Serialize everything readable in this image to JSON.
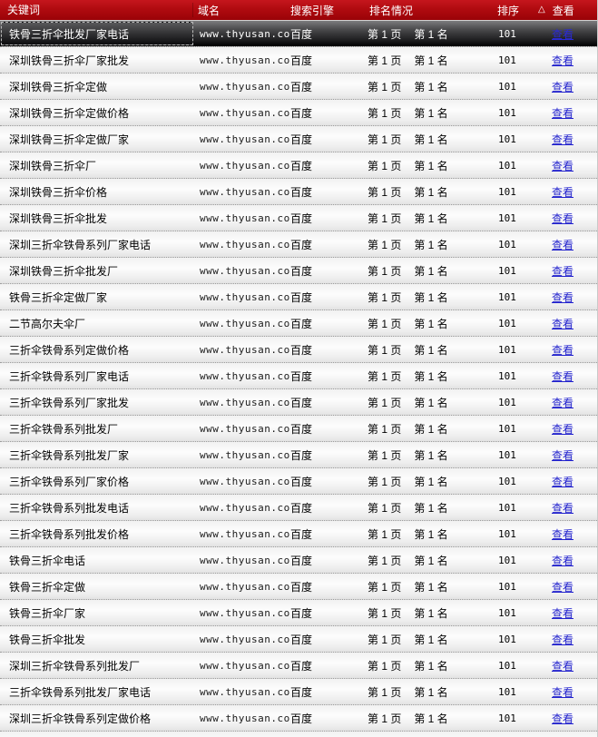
{
  "header": {
    "columns": [
      "关键词",
      "域名",
      "搜索引擎",
      "排名情况",
      "排序",
      "查看"
    ],
    "sort_icon": "△"
  },
  "colors": {
    "header_red": "#b00b10",
    "link_blue": "#2323cd",
    "selected_row_dark": "#1e1e20",
    "row_separator": "#9c9c9c"
  },
  "table": {
    "rows": [
      {
        "keyword": "铁骨三折伞批发厂家电话",
        "domain": "www.thyusan.com",
        "engine": "百度",
        "rank_page": "第 1 页",
        "rank_pos": "第 1 名",
        "sort": "101",
        "view": "查看",
        "selected": true
      },
      {
        "keyword": "深圳铁骨三折伞厂家批发",
        "domain": "www.thyusan.com",
        "engine": "百度",
        "rank_page": "第 1 页",
        "rank_pos": "第 1 名",
        "sort": "101",
        "view": "查看",
        "selected": false
      },
      {
        "keyword": "深圳铁骨三折伞定做",
        "domain": "www.thyusan.com",
        "engine": "百度",
        "rank_page": "第 1 页",
        "rank_pos": "第 1 名",
        "sort": "101",
        "view": "查看",
        "selected": false
      },
      {
        "keyword": "深圳铁骨三折伞定做价格",
        "domain": "www.thyusan.com",
        "engine": "百度",
        "rank_page": "第 1 页",
        "rank_pos": "第 1 名",
        "sort": "101",
        "view": "查看",
        "selected": false
      },
      {
        "keyword": "深圳铁骨三折伞定做厂家",
        "domain": "www.thyusan.com",
        "engine": "百度",
        "rank_page": "第 1 页",
        "rank_pos": "第 1 名",
        "sort": "101",
        "view": "查看",
        "selected": false
      },
      {
        "keyword": "深圳铁骨三折伞厂",
        "domain": "www.thyusan.com",
        "engine": "百度",
        "rank_page": "第 1 页",
        "rank_pos": "第 1 名",
        "sort": "101",
        "view": "查看",
        "selected": false
      },
      {
        "keyword": "深圳铁骨三折伞价格",
        "domain": "www.thyusan.com",
        "engine": "百度",
        "rank_page": "第 1 页",
        "rank_pos": "第 1 名",
        "sort": "101",
        "view": "查看",
        "selected": false
      },
      {
        "keyword": "深圳铁骨三折伞批发",
        "domain": "www.thyusan.com",
        "engine": "百度",
        "rank_page": "第 1 页",
        "rank_pos": "第 1 名",
        "sort": "101",
        "view": "查看",
        "selected": false
      },
      {
        "keyword": "深圳三折伞铁骨系列厂家电话",
        "domain": "www.thyusan.com",
        "engine": "百度",
        "rank_page": "第 1 页",
        "rank_pos": "第 1 名",
        "sort": "101",
        "view": "查看",
        "selected": false
      },
      {
        "keyword": "深圳铁骨三折伞批发厂",
        "domain": "www.thyusan.com",
        "engine": "百度",
        "rank_page": "第 1 页",
        "rank_pos": "第 1 名",
        "sort": "101",
        "view": "查看",
        "selected": false
      },
      {
        "keyword": "铁骨三折伞定做厂家",
        "domain": "www.thyusan.com",
        "engine": "百度",
        "rank_page": "第 1 页",
        "rank_pos": "第 1 名",
        "sort": "101",
        "view": "查看",
        "selected": false
      },
      {
        "keyword": "二节高尔夫伞厂",
        "domain": "www.thyusan.com",
        "engine": "百度",
        "rank_page": "第 1 页",
        "rank_pos": "第 1 名",
        "sort": "101",
        "view": "查看",
        "selected": false
      },
      {
        "keyword": "三折伞铁骨系列定做价格",
        "domain": "www.thyusan.com",
        "engine": "百度",
        "rank_page": "第 1 页",
        "rank_pos": "第 1 名",
        "sort": "101",
        "view": "查看",
        "selected": false
      },
      {
        "keyword": "三折伞铁骨系列厂家电话",
        "domain": "www.thyusan.com",
        "engine": "百度",
        "rank_page": "第 1 页",
        "rank_pos": "第 1 名",
        "sort": "101",
        "view": "查看",
        "selected": false
      },
      {
        "keyword": "三折伞铁骨系列厂家批发",
        "domain": "www.thyusan.com",
        "engine": "百度",
        "rank_page": "第 1 页",
        "rank_pos": "第 1 名",
        "sort": "101",
        "view": "查看",
        "selected": false
      },
      {
        "keyword": "三折伞铁骨系列批发厂",
        "domain": "www.thyusan.com",
        "engine": "百度",
        "rank_page": "第 1 页",
        "rank_pos": "第 1 名",
        "sort": "101",
        "view": "查看",
        "selected": false
      },
      {
        "keyword": "三折伞铁骨系列批发厂家",
        "domain": "www.thyusan.com",
        "engine": "百度",
        "rank_page": "第 1 页",
        "rank_pos": "第 1 名",
        "sort": "101",
        "view": "查看",
        "selected": false
      },
      {
        "keyword": "三折伞铁骨系列厂家价格",
        "domain": "www.thyusan.com",
        "engine": "百度",
        "rank_page": "第 1 页",
        "rank_pos": "第 1 名",
        "sort": "101",
        "view": "查看",
        "selected": false
      },
      {
        "keyword": "三折伞铁骨系列批发电话",
        "domain": "www.thyusan.com",
        "engine": "百度",
        "rank_page": "第 1 页",
        "rank_pos": "第 1 名",
        "sort": "101",
        "view": "查看",
        "selected": false
      },
      {
        "keyword": "三折伞铁骨系列批发价格",
        "domain": "www.thyusan.com",
        "engine": "百度",
        "rank_page": "第 1 页",
        "rank_pos": "第 1 名",
        "sort": "101",
        "view": "查看",
        "selected": false
      },
      {
        "keyword": "铁骨三折伞电话",
        "domain": "www.thyusan.com",
        "engine": "百度",
        "rank_page": "第 1 页",
        "rank_pos": "第 1 名",
        "sort": "101",
        "view": "查看",
        "selected": false
      },
      {
        "keyword": "铁骨三折伞定做",
        "domain": "www.thyusan.com",
        "engine": "百度",
        "rank_page": "第 1 页",
        "rank_pos": "第 1 名",
        "sort": "101",
        "view": "查看",
        "selected": false
      },
      {
        "keyword": "铁骨三折伞厂家",
        "domain": "www.thyusan.com",
        "engine": "百度",
        "rank_page": "第 1 页",
        "rank_pos": "第 1 名",
        "sort": "101",
        "view": "查看",
        "selected": false
      },
      {
        "keyword": "铁骨三折伞批发",
        "domain": "www.thyusan.com",
        "engine": "百度",
        "rank_page": "第 1 页",
        "rank_pos": "第 1 名",
        "sort": "101",
        "view": "查看",
        "selected": false
      },
      {
        "keyword": "深圳三折伞铁骨系列批发厂",
        "domain": "www.thyusan.com",
        "engine": "百度",
        "rank_page": "第 1 页",
        "rank_pos": "第 1 名",
        "sort": "101",
        "view": "查看",
        "selected": false
      },
      {
        "keyword": "三折伞铁骨系列批发厂家电话",
        "domain": "www.thyusan.com",
        "engine": "百度",
        "rank_page": "第 1 页",
        "rank_pos": "第 1 名",
        "sort": "101",
        "view": "查看",
        "selected": false
      },
      {
        "keyword": "深圳三折伞铁骨系列定做价格",
        "domain": "www.thyusan.com",
        "engine": "百度",
        "rank_page": "第 1 页",
        "rank_pos": "第 1 名",
        "sort": "101",
        "view": "查看",
        "selected": false
      },
      {
        "keyword": "",
        "domain": "",
        "engine": "",
        "rank_page": "",
        "rank_pos": "",
        "sort": "",
        "view": "",
        "selected": false,
        "filler": true
      }
    ]
  }
}
